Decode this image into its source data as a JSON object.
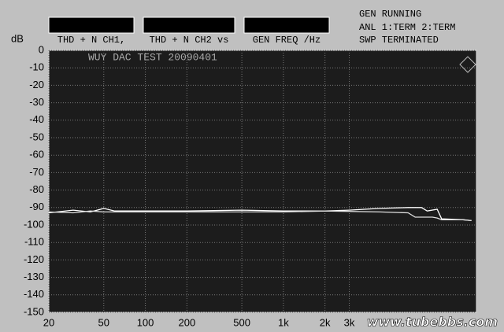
{
  "chart_data": {
    "type": "line",
    "header_labels": [
      "THD + N CH1,",
      "THD + N CH2 vs",
      "GEN FREQ /Hz"
    ],
    "status": [
      "GEN RUNNING",
      "ANL 1:TERM 2:TERM",
      "SWP TERMINATED"
    ],
    "y_label": "dB",
    "annotation": "WUY DAC TEST 20090401",
    "watermark": "www.tubebbs.com",
    "xlog": true,
    "grid": true,
    "xlim": [
      20,
      25000
    ],
    "xticks": [
      20,
      50,
      100,
      200,
      500,
      {
        "value": 1000,
        "label": "1k"
      },
      {
        "value": 2000,
        "label": "2k"
      },
      {
        "value": 3000,
        "label": "3k"
      }
    ],
    "ylim": [
      -150,
      0
    ],
    "yticks": [
      0,
      -10,
      -20,
      -30,
      -40,
      -50,
      -60,
      -70,
      -80,
      -90,
      -100,
      -110,
      -120,
      -130,
      -140,
      -150
    ],
    "series": [
      {
        "color": "#ffffff",
        "x": [
          20,
          30,
          40,
          50,
          60,
          100,
          200,
          500,
          1000,
          2000,
          3000,
          5000,
          8000,
          10000,
          11000,
          13000,
          14000,
          20000,
          23000
        ],
        "values": [
          -93,
          -91.5,
          -92.5,
          -90.5,
          -92,
          -92,
          -92,
          -91.5,
          -92,
          -92,
          -91.5,
          -90.5,
          -90,
          -90,
          -92,
          -91,
          -96.5,
          -97,
          -97.5
        ]
      },
      {
        "color": "#e0e0e0",
        "x": [
          20,
          30,
          40,
          50,
          100,
          200,
          500,
          1000,
          2000,
          5000,
          8000,
          9000,
          12000,
          13000,
          14000,
          20000,
          23000
        ],
        "values": [
          -92.5,
          -93,
          -92,
          -92.5,
          -92.5,
          -92.5,
          -92.5,
          -92.5,
          -92,
          -92.5,
          -93,
          -95.5,
          -95.5,
          -96,
          -97,
          -97,
          -97.5
        ]
      }
    ]
  }
}
